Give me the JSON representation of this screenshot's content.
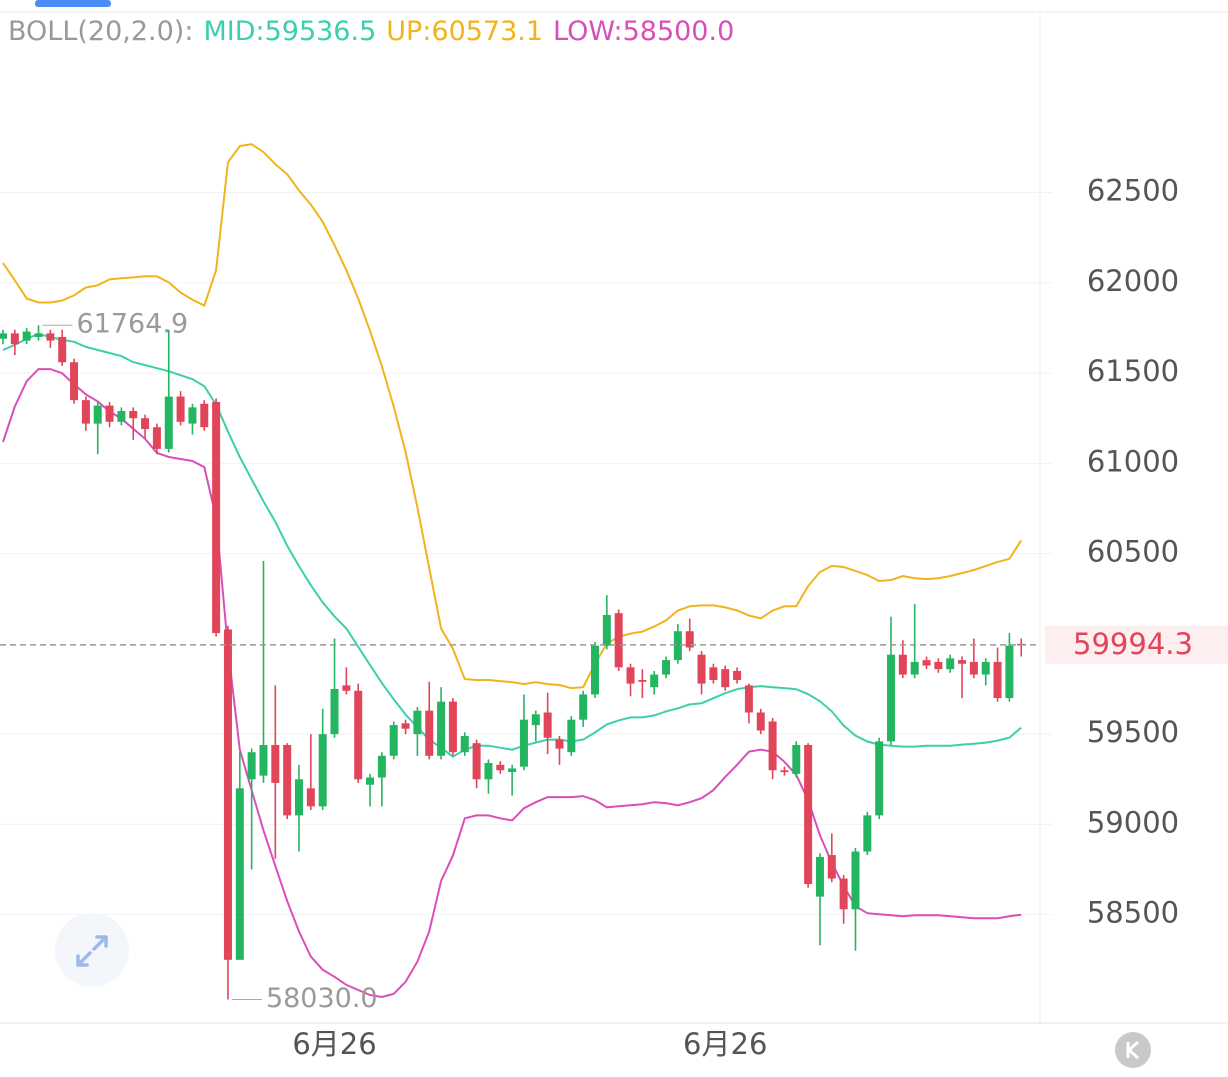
{
  "chart_data": {
    "type": "candlestick",
    "indicator": "BOLL(20,2.0):",
    "categories": [
      null,
      null,
      null,
      null,
      null,
      null,
      null,
      null,
      null,
      null,
      null,
      null,
      null,
      null,
      null,
      null,
      null,
      null,
      null,
      null,
      null,
      null,
      null,
      null,
      null,
      null,
      null,
      null,
      "6月26",
      null,
      null,
      null,
      null,
      null,
      null,
      null,
      null,
      null,
      null,
      null,
      null,
      null,
      null,
      null,
      null,
      null,
      null,
      null,
      null,
      null,
      null,
      null,
      null,
      null,
      null,
      null,
      null,
      null,
      null,
      null,
      null,
      "6月26",
      null,
      null,
      null,
      null,
      null,
      null,
      null,
      null,
      null,
      null,
      null,
      null,
      null,
      null,
      null,
      null,
      null,
      null,
      null,
      null,
      null,
      null,
      null,
      null,
      null
    ],
    "open": [
      61690,
      61720,
      61680,
      61700,
      61720,
      61700,
      61560,
      61350,
      61220,
      61320,
      61230,
      61290,
      61250,
      61200,
      61080,
      61370,
      61220,
      61330,
      61340,
      60080,
      58250,
      59250,
      59270,
      59440,
      59440,
      59050,
      59200,
      59100,
      59500,
      59770,
      59740,
      59220,
      59260,
      59380,
      59560,
      59500,
      59630,
      59380,
      59680,
      59400,
      59450,
      59250,
      59330,
      59290,
      59320,
      59550,
      59620,
      59470,
      59400,
      59580,
      59720,
      59990,
      60170,
      59870,
      59800,
      59760,
      59830,
      59910,
      60070,
      59940,
      59870,
      59860,
      59850,
      59770,
      59620,
      59570,
      59300,
      59280,
      59440,
      58600,
      58830,
      58700,
      58530,
      58850,
      59050,
      59460,
      59940,
      59830,
      59910,
      59900,
      59860,
      59910,
      59900,
      59830,
      59900,
      59700,
      60000
    ],
    "high": [
      61740,
      61740,
      61750,
      61764.9,
      61740,
      61740,
      61580,
      61370,
      61340,
      61340,
      61310,
      61310,
      61270,
      61220,
      61740,
      61400,
      61330,
      61350,
      61360,
      60100,
      59400,
      59420,
      60460,
      59770,
      59450,
      59330,
      59500,
      59640,
      60030,
      59870,
      59780,
      59280,
      59400,
      59570,
      59580,
      59650,
      59790,
      59760,
      59700,
      59510,
      59470,
      59360,
      59350,
      59330,
      59720,
      59630,
      59730,
      59490,
      59600,
      59740,
      60010,
      60270,
      60190,
      59890,
      59860,
      59850,
      59930,
      60110,
      60140,
      59960,
      59890,
      59880,
      59870,
      59780,
      59640,
      59590,
      59320,
      59460,
      59450,
      58840,
      58950,
      58720,
      58870,
      59070,
      59480,
      60150,
      60020,
      60220,
      59930,
      59920,
      59940,
      59930,
      60030,
      59920,
      59980,
      60060,
      60030
    ],
    "low": [
      61660,
      61600,
      61660,
      61680,
      61640,
      61540,
      61330,
      61180,
      61050,
      61200,
      61210,
      61130,
      61140,
      61050,
      61060,
      61210,
      61160,
      61180,
      60040,
      58030,
      58250,
      58750,
      59230,
      58810,
      59030,
      58850,
      59080,
      59080,
      59480,
      59720,
      59230,
      59100,
      59100,
      59360,
      59500,
      59380,
      59360,
      59360,
      59380,
      59380,
      59200,
      59170,
      59280,
      59160,
      59300,
      59460,
      59390,
      59330,
      59380,
      59540,
      59700,
      59970,
      59850,
      59710,
      59700,
      59720,
      59810,
      59890,
      59960,
      59720,
      59780,
      59740,
      59780,
      59560,
      59500,
      59250,
      59270,
      59260,
      58650,
      58330,
      58680,
      58450,
      58300,
      58830,
      59030,
      59440,
      59810,
      59810,
      59860,
      59840,
      59840,
      59700,
      59810,
      59770,
      59680,
      59680,
      59930
    ],
    "close": [
      61720,
      61660,
      61730,
      61720,
      61680,
      61560,
      61350,
      61220,
      61320,
      61230,
      61290,
      61250,
      61190,
      61080,
      61370,
      61230,
      61310,
      61200,
      60060,
      58250,
      59200,
      59400,
      59440,
      59230,
      59050,
      59250,
      59100,
      59500,
      59750,
      59740,
      59250,
      59260,
      59380,
      59550,
      59530,
      59630,
      59380,
      59680,
      59400,
      59490,
      59250,
      59340,
      59300,
      59310,
      59580,
      59610,
      59480,
      59420,
      59580,
      59720,
      59990,
      60160,
      59870,
      59780,
      59790,
      59830,
      59910,
      60070,
      59980,
      59780,
      59800,
      59760,
      59800,
      59620,
      59520,
      59300,
      59290,
      59440,
      58670,
      58820,
      58700,
      58530,
      58850,
      59050,
      59460,
      59940,
      59830,
      59900,
      59880,
      59860,
      59920,
      59890,
      59830,
      59900,
      59700,
      59990,
      59994.3
    ],
    "high_value_labels": [
      null,
      null,
      null,
      "61764.9",
      null,
      null,
      null,
      null,
      null,
      null,
      null,
      null,
      null,
      null,
      null,
      null,
      null,
      null,
      null,
      null,
      null,
      null,
      null,
      null,
      null,
      null,
      null,
      null,
      null,
      null,
      null,
      null,
      null,
      null,
      null,
      null,
      null,
      null,
      null,
      null,
      null,
      null,
      null,
      null,
      null,
      null,
      null,
      null,
      null,
      null,
      null,
      null,
      null,
      null,
      null,
      null,
      null,
      null,
      null,
      null,
      null,
      null,
      null,
      null,
      null,
      null,
      null,
      null,
      null,
      null,
      null,
      null,
      null,
      null,
      null,
      null,
      null,
      null,
      null,
      null,
      null,
      null,
      null,
      null,
      null,
      null,
      null
    ],
    "low_value_labels": [
      null,
      null,
      null,
      null,
      null,
      null,
      null,
      null,
      null,
      null,
      null,
      null,
      null,
      null,
      null,
      null,
      null,
      null,
      null,
      "58030.0",
      null,
      null,
      null,
      null,
      null,
      null,
      null,
      null,
      null,
      null,
      null,
      null,
      null,
      null,
      null,
      null,
      null,
      null,
      null,
      null,
      null,
      null,
      null,
      null,
      null,
      null,
      null,
      null,
      null,
      null,
      null,
      null,
      null,
      null,
      null,
      null,
      null,
      null,
      null,
      null,
      null,
      null,
      null,
      null,
      null,
      null,
      null,
      null,
      null,
      null,
      null,
      null,
      null,
      null,
      null,
      null,
      null,
      null,
      null,
      null,
      null,
      null,
      null,
      null,
      null,
      null,
      null
    ],
    "up_color": "#24b561",
    "down_color": "#e0455a",
    "series": [
      {
        "name": "MID:",
        "color": "#3ccfae",
        "last_value_label": "59536.5",
        "values": [
          61628,
          61656,
          61690,
          61717,
          61700,
          61684,
          61673,
          61645,
          61628,
          61611,
          61594,
          61561,
          61544,
          61527,
          61510,
          61488,
          61466,
          61427,
          61326,
          61175,
          61035,
          60912,
          60789,
          60677,
          60543,
          60431,
          60325,
          60230,
          60152,
          60085,
          59984,
          59883,
          59783,
          59693,
          59609,
          59537,
          59470,
          59425,
          59375,
          59414,
          59436,
          59436,
          59425,
          59414,
          59436,
          59453,
          59470,
          59470,
          59459,
          59470,
          59509,
          59554,
          59576,
          59593,
          59593,
          59604,
          59626,
          59643,
          59665,
          59671,
          59699,
          59727,
          59749,
          59760,
          59766,
          59760,
          59755,
          59749,
          59721,
          59682,
          59626,
          59548,
          59492,
          59459,
          59442,
          59436,
          59431,
          59431,
          59436,
          59436,
          59436,
          59442,
          59447,
          59453,
          59464,
          59481,
          59536.5
        ]
      },
      {
        "name": "UP:",
        "color": "#f0b41c",
        "last_value_label": "60573.1",
        "values": [
          62109,
          62014,
          61913,
          61891,
          61891,
          61902,
          61930,
          61974,
          61986,
          62019,
          62025,
          62030,
          62036,
          62036,
          62002,
          61946,
          61907,
          61874,
          62070,
          62668,
          62757,
          62768,
          62724,
          62657,
          62601,
          62511,
          62433,
          62338,
          62209,
          62070,
          61913,
          61734,
          61538,
          61315,
          61063,
          60756,
          60420,
          60085,
          59973,
          59805,
          59800,
          59800,
          59794,
          59788,
          59777,
          59788,
          59777,
          59772,
          59755,
          59760,
          59889,
          60001,
          60040,
          60057,
          60068,
          60096,
          60130,
          60185,
          60208,
          60213,
          60213,
          60202,
          60185,
          60157,
          60141,
          60185,
          60208,
          60208,
          60320,
          60398,
          60432,
          60426,
          60404,
          60381,
          60348,
          60353,
          60376,
          60364,
          60359,
          60364,
          60376,
          60392,
          60409,
          60431,
          60454,
          60471,
          60573.1
        ]
      },
      {
        "name": "LOW:",
        "color": "#d94fb8",
        "last_value_label": "58500.0",
        "values": [
          61119,
          61315,
          61455,
          61522,
          61522,
          61499,
          61438,
          61382,
          61343,
          61287,
          61248,
          61192,
          61136,
          61058,
          61035,
          61024,
          61013,
          60979,
          60700,
          59973,
          59414,
          59190,
          58967,
          58771,
          58575,
          58407,
          58268,
          58195,
          58156,
          58111,
          58083,
          58055,
          58044,
          58061,
          58128,
          58240,
          58407,
          58687,
          58827,
          59034,
          59050,
          59050,
          59034,
          59022,
          59090,
          59123,
          59151,
          59151,
          59151,
          59157,
          59134,
          59095,
          59101,
          59106,
          59112,
          59123,
          59118,
          59106,
          59123,
          59145,
          59190,
          59263,
          59330,
          59403,
          59414,
          59403,
          59347,
          59274,
          59134,
          58939,
          58788,
          58659,
          58547,
          58508,
          58502,
          58497,
          58491,
          58497,
          58497,
          58497,
          58491,
          58486,
          58480,
          58480,
          58480,
          58491,
          58500
        ]
      }
    ],
    "ylim": [
      57900,
      63500
    ],
    "yticks": [
      58500,
      59000,
      59500,
      60500,
      61000,
      61500,
      62000,
      62500
    ],
    "grid": true
  }
}
